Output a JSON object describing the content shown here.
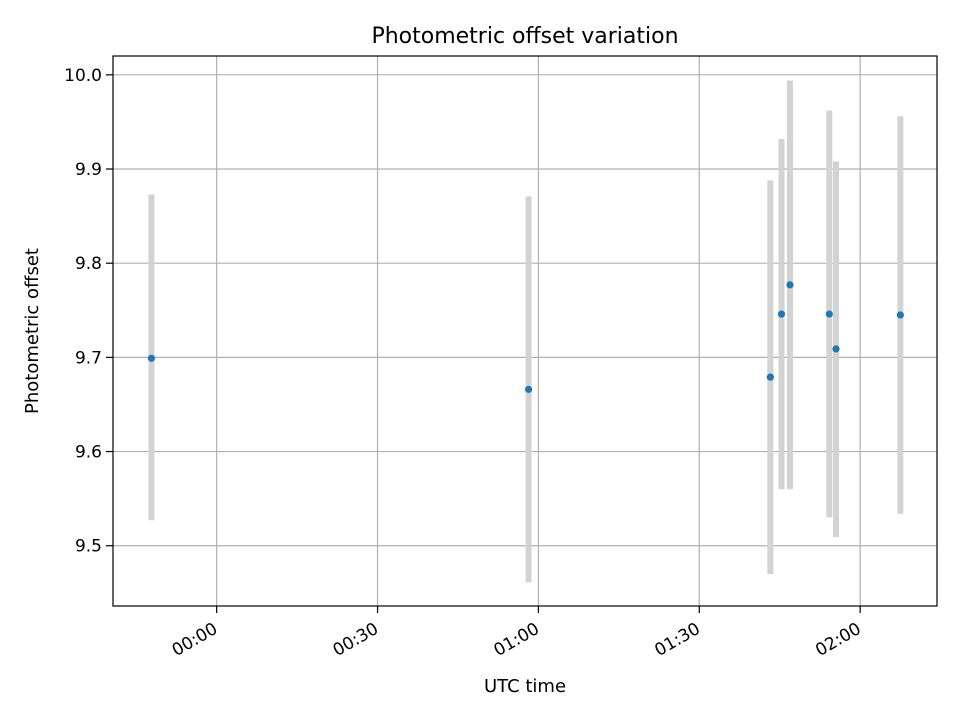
{
  "chart_data": {
    "type": "scatter",
    "title": "Photometric offset variation",
    "xlabel": "UTC time",
    "ylabel": "Photometric offset",
    "x_axis_type": "time",
    "xlim": [
      "-00:19:20",
      "02:14:20"
    ],
    "ylim": [
      9.436,
      10.02
    ],
    "x_ticks": [
      "00:00",
      "00:30",
      "01:00",
      "01:30",
      "02:00"
    ],
    "y_ticks": [
      "9.5",
      "9.6",
      "9.7",
      "9.8",
      "9.9",
      "10.0"
    ],
    "grid": true,
    "marker_color": "#1f77b4",
    "errorbar_color": "#d3d3d3",
    "points": [
      {
        "x": "-00:12:10",
        "y": 9.699,
        "ylow": 9.527,
        "yhigh": 9.873
      },
      {
        "x": "00:58:10",
        "y": 9.666,
        "ylow": 9.461,
        "yhigh": 9.871
      },
      {
        "x": "01:43:15",
        "y": 9.679,
        "ylow": 9.47,
        "yhigh": 9.888
      },
      {
        "x": "01:45:20",
        "y": 9.746,
        "ylow": 9.56,
        "yhigh": 9.932
      },
      {
        "x": "01:46:55",
        "y": 9.777,
        "ylow": 9.56,
        "yhigh": 9.994
      },
      {
        "x": "01:54:15",
        "y": 9.746,
        "ylow": 9.53,
        "yhigh": 9.962
      },
      {
        "x": "01:55:30",
        "y": 9.709,
        "ylow": 9.509,
        "yhigh": 9.908
      },
      {
        "x": "02:07:30",
        "y": 9.745,
        "ylow": 9.534,
        "yhigh": 9.956
      }
    ]
  }
}
